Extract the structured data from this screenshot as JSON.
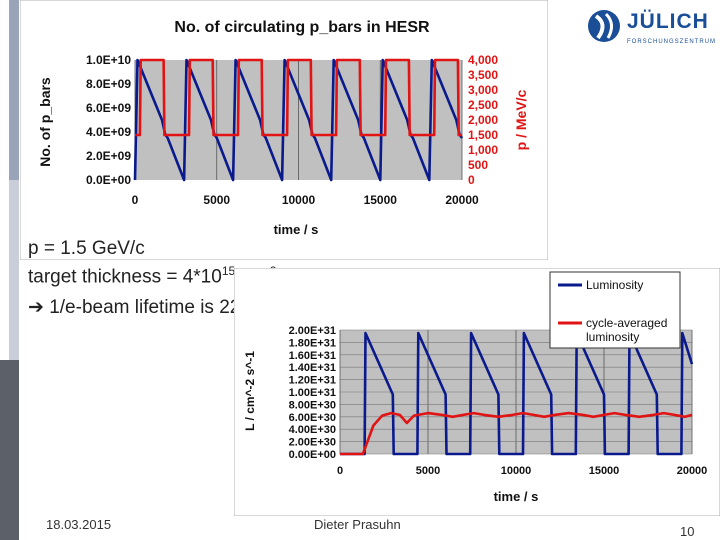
{
  "logo": {
    "name": "JÜLICH",
    "subtitle": "FORSCHUNGSZENTRUM"
  },
  "params": {
    "line1": "p = 1.5 GeV/c",
    "line2_prefix": "target thickness = 4*10",
    "line2_exp": "15",
    "line2_unit": " cm",
    "line2_unit_exp": "-2",
    "line3": "1/e-beam lifetime is 2200 s"
  },
  "footer": {
    "date": "18.03.2015",
    "author": "Dieter Prasuhn",
    "page": "10"
  },
  "colors": {
    "blue": "#0a1a8c",
    "red": "#e01414",
    "plot_bg": "#c0c0c0"
  },
  "chart_data": [
    {
      "type": "line",
      "title": "No. of circulating  p_bars in HESR",
      "xlabel": "time / s",
      "ylabel": "No. of p_bars",
      "y2label": "p / MeV/c",
      "xlim": [
        0,
        20000
      ],
      "ylim": [
        0,
        10000000000.0
      ],
      "y2lim": [
        0,
        4000
      ],
      "xticks": [
        "0",
        "5000",
        "10000",
        "15000",
        "20000"
      ],
      "yticks": [
        "0.0E+00",
        "2.0E+09",
        "4.0E+09",
        "6.0E+09",
        "8.0E+09",
        "1.0E+10"
      ],
      "y2ticks": [
        "0",
        "500",
        "1,000",
        "1,500",
        "2,000",
        "2,500",
        "3,000",
        "3,500",
        "4,000"
      ],
      "cycle_period_s": 3000,
      "beam_lifetime_s": 2200,
      "series": [
        {
          "name": "p_bars",
          "color": "#0a1a8c",
          "axis": "left",
          "x": [
            0,
            150,
            1650,
            1850,
            2000,
            3000,
            3150,
            4650,
            4850,
            5000,
            6000,
            6150,
            7650,
            7850,
            8000,
            9000,
            9150,
            10650,
            10850,
            11000,
            12000,
            12150,
            13650,
            13850,
            14000,
            15000,
            15150,
            16650,
            16850,
            17000,
            18000,
            18150,
            19650,
            19850,
            20000
          ],
          "values": [
            0,
            10000000000.0,
            5000000000.0,
            3800000000.0,
            3500000000.0,
            0,
            10000000000.0,
            5000000000.0,
            3800000000.0,
            3500000000.0,
            0,
            10000000000.0,
            5000000000.0,
            3800000000.0,
            3500000000.0,
            0,
            10000000000.0,
            5000000000.0,
            3800000000.0,
            3500000000.0,
            0,
            10000000000.0,
            5000000000.0,
            3800000000.0,
            3500000000.0,
            0,
            10000000000.0,
            5000000000.0,
            3800000000.0,
            3500000000.0,
            0,
            10000000000.0,
            5000000000.0,
            3800000000.0,
            3500000000.0
          ]
        },
        {
          "name": "momentum",
          "color": "#e01414",
          "axis": "right",
          "x": [
            0,
            300,
            350,
            1750,
            1800,
            3300,
            3350,
            4750,
            4800,
            6300,
            6350,
            7750,
            7800,
            9300,
            9350,
            10750,
            10800,
            12300,
            12350,
            13750,
            13800,
            15300,
            15350,
            16750,
            16800,
            18300,
            18350,
            19750,
            19800,
            20000
          ],
          "values": [
            1500,
            1500,
            4000,
            4000,
            1500,
            1500,
            4000,
            4000,
            1500,
            1500,
            4000,
            4000,
            1500,
            1500,
            4000,
            4000,
            1500,
            1500,
            4000,
            4000,
            1500,
            1500,
            4000,
            4000,
            1500,
            1500,
            4000,
            4000,
            1500,
            1500
          ]
        }
      ]
    },
    {
      "type": "line",
      "title": "",
      "xlabel": "time / s",
      "ylabel": "L / cm^-2 s^-1",
      "xlim": [
        0,
        20000
      ],
      "ylim": [
        0,
        2e+31
      ],
      "xticks": [
        "0",
        "5000",
        "10000",
        "15000",
        "20000"
      ],
      "yticks": [
        "0.00E+00",
        "2.00E+30",
        "4.00E+30",
        "6.00E+30",
        "8.00E+30",
        "1.00E+31",
        "1.20E+31",
        "1.40E+31",
        "1.60E+31",
        "1.80E+31",
        "2.00E+31"
      ],
      "legend": [
        "Luminosity",
        "cycle-averaged luminosity"
      ],
      "legend_position": "top-right",
      "cycle_period_s": 3000,
      "series": [
        {
          "name": "Luminosity",
          "color": "#0a1a8c",
          "x": [
            0,
            1400,
            1450,
            3000,
            3050,
            4400,
            4450,
            6000,
            6050,
            7400,
            7450,
            9000,
            9050,
            10400,
            10450,
            12000,
            12050,
            13400,
            13450,
            15000,
            15050,
            16400,
            16450,
            18000,
            18050,
            19400,
            19450,
            20000
          ],
          "values": [
            0,
            0,
            1.95e+31,
            9.6e+30,
            0,
            0,
            1.95e+31,
            9.6e+30,
            0,
            0,
            1.95e+31,
            9.6e+30,
            0,
            0,
            1.95e+31,
            9.6e+30,
            0,
            0,
            1.95e+31,
            9.6e+30,
            0,
            0,
            1.95e+31,
            9.6e+30,
            0,
            0,
            1.95e+31,
            1.45e+31
          ]
        },
        {
          "name": "cycle-averaged luminosity",
          "color": "#e01414",
          "x": [
            0,
            1300,
            1900,
            2400,
            2900,
            3400,
            3800,
            4200,
            5000,
            5800,
            6400,
            7000,
            7600,
            8200,
            9000,
            9800,
            10400,
            11000,
            11600,
            12200,
            13000,
            13800,
            14400,
            15000,
            15600,
            16200,
            17000,
            17800,
            18400,
            19000,
            19600,
            20000
          ],
          "values": [
            0,
            0,
            4.6e+30,
            6.2e+30,
            6.6e+30,
            6.3e+30,
            5e+30,
            6.2e+30,
            6.6e+30,
            6.3e+30,
            6e+30,
            6.3e+30,
            6.6e+30,
            6.3e+30,
            6e+30,
            6.3e+30,
            6.6e+30,
            6.3e+30,
            6e+30,
            6.3e+30,
            6.6e+30,
            6.3e+30,
            6e+30,
            6.3e+30,
            6.6e+30,
            6.3e+30,
            6e+30,
            6.3e+30,
            6.6e+30,
            6.3e+30,
            6e+30,
            6.3e+30
          ]
        }
      ]
    }
  ]
}
